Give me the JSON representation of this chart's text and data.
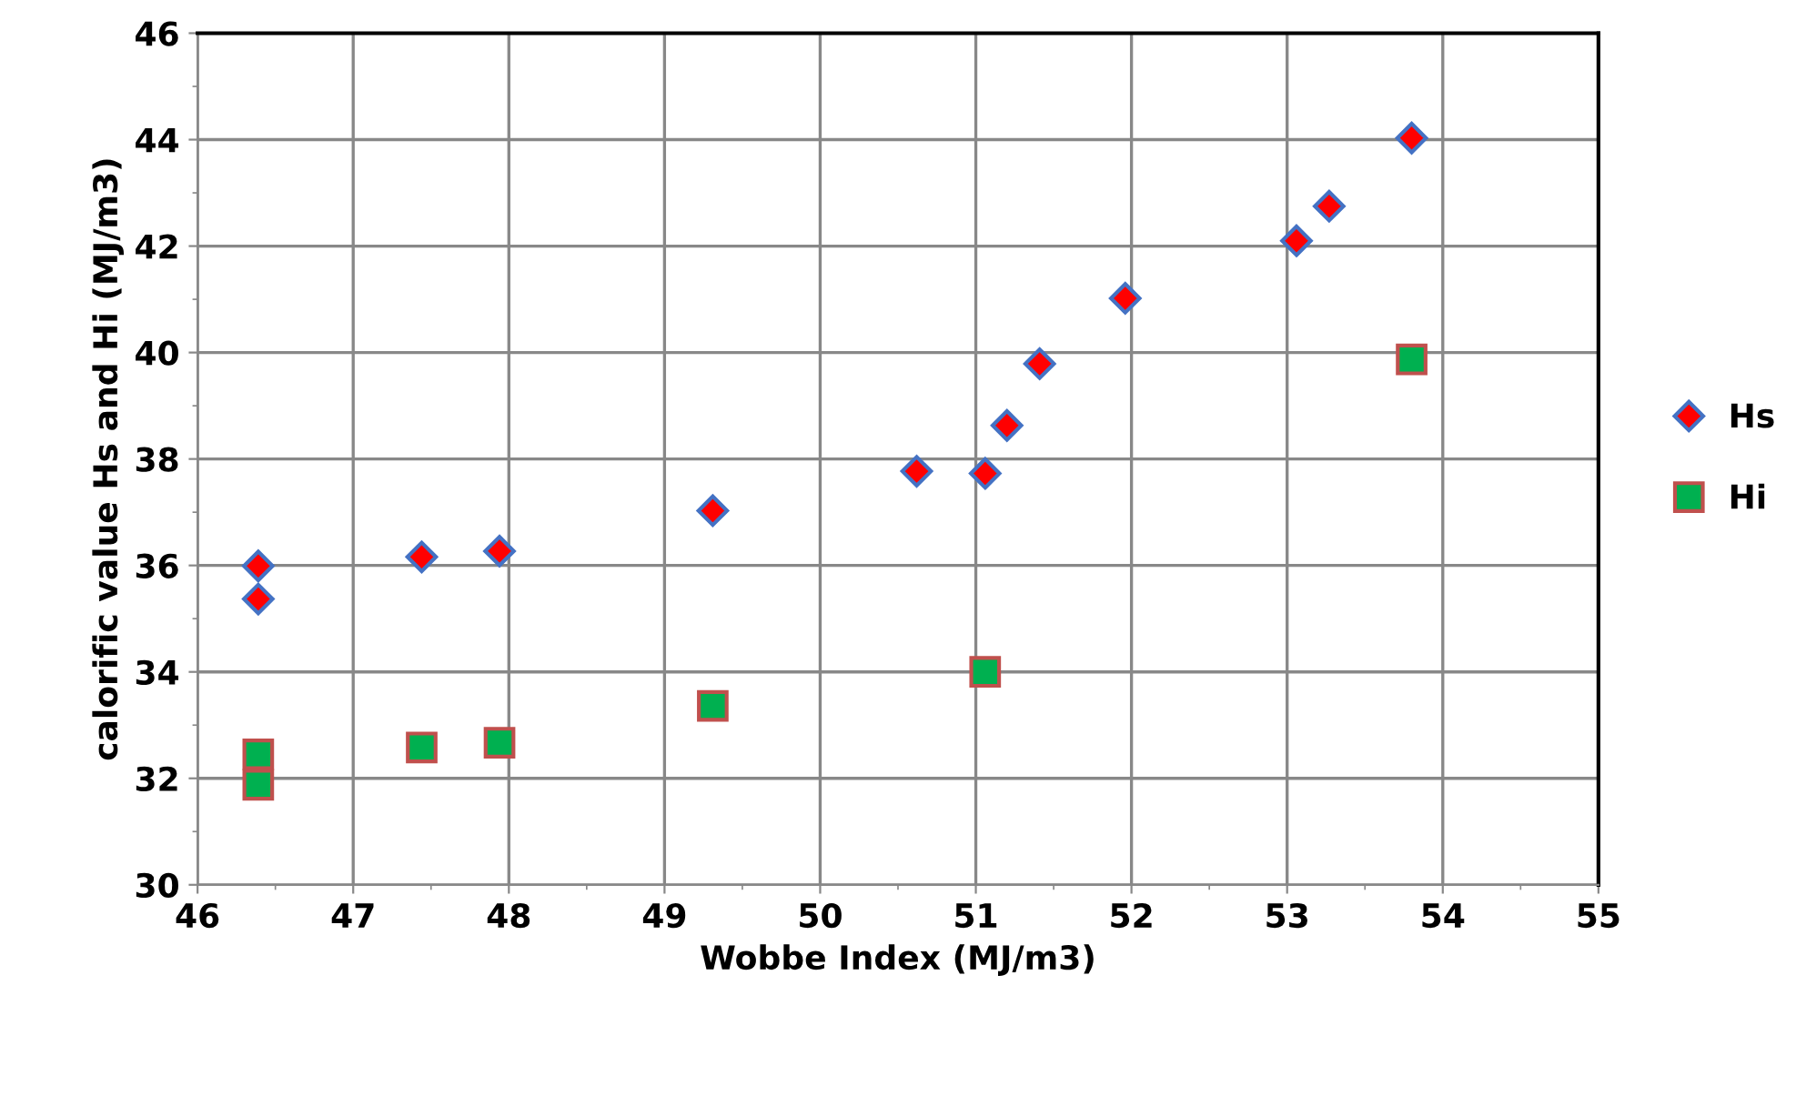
{
  "chart_data": {
    "type": "scatter",
    "xlabel": "Wobbe Index (MJ/m3)",
    "ylabel": "calorific value Hs and Hi (MJ/m3)",
    "xlim": [
      46,
      55
    ],
    "xticks": [
      46,
      47,
      48,
      49,
      50,
      51,
      52,
      53,
      54,
      55
    ],
    "ylim": [
      30,
      46
    ],
    "yticks": [
      30,
      32,
      34,
      36,
      38,
      40,
      42,
      44,
      46
    ],
    "grid": true,
    "legend": "right",
    "series": [
      {
        "name": "Hs",
        "color": "#ff0000",
        "marker": "diamond",
        "x": [
          46.39,
          46.39,
          47.44,
          47.94,
          49.31,
          50.62,
          51.06,
          51.2,
          51.41,
          51.96,
          53.06,
          53.27,
          53.8
        ],
        "values": [
          35.99,
          35.37,
          36.16,
          36.27,
          37.03,
          37.77,
          37.73,
          38.63,
          39.79,
          41.02,
          42.1,
          42.75,
          44.03
        ]
      },
      {
        "name": "Hi",
        "color": "#00b050",
        "marker": "square",
        "x": [
          46.39,
          46.39,
          47.44,
          47.94,
          49.31,
          51.06,
          53.8
        ],
        "values": [
          31.88,
          32.45,
          32.58,
          32.67,
          33.36,
          34.0,
          39.87
        ]
      }
    ]
  }
}
